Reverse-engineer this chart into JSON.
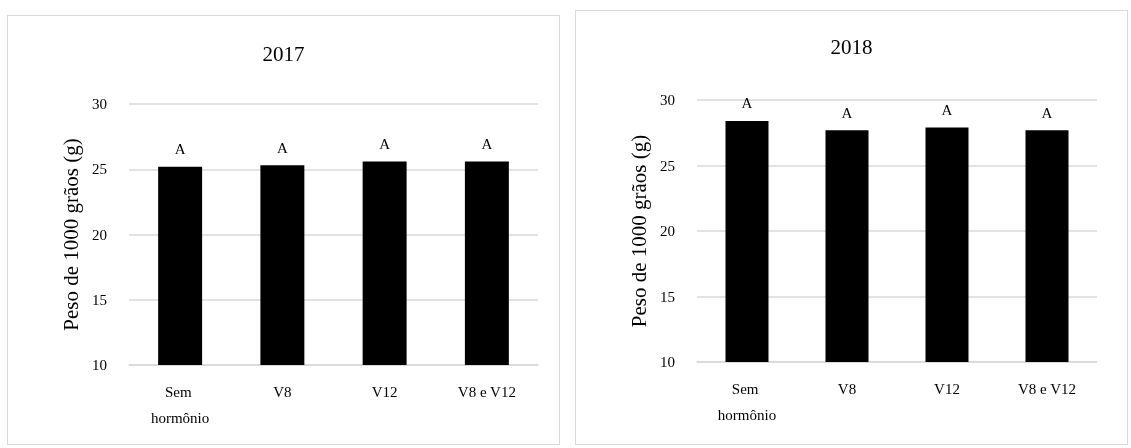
{
  "chart_data": [
    {
      "type": "bar",
      "title": "2017",
      "ylabel": "Peso de 1000 grãos (g)",
      "categories": [
        "Sem hormônio",
        "V8",
        "V12",
        "V8 e V12"
      ],
      "values": [
        25.2,
        25.3,
        25.6,
        25.6
      ],
      "value_labels": [
        "A",
        "A",
        "A",
        "A"
      ],
      "color": "#000000",
      "ylim": [
        10,
        30
      ],
      "yticks": [
        10,
        15,
        20,
        25,
        30
      ],
      "grid": "y"
    },
    {
      "type": "bar",
      "title": "2018",
      "ylabel": "Peso de 1000 grãos (g)",
      "categories": [
        "Sem hormônio",
        "V8",
        "V12",
        "V8 e V12"
      ],
      "values": [
        28.4,
        27.7,
        27.9,
        27.7
      ],
      "value_labels": [
        "A",
        "A",
        "A",
        "A"
      ],
      "color": "#000000",
      "ylim": [
        10,
        30
      ],
      "yticks": [
        10,
        15,
        20,
        25,
        30
      ],
      "grid": "y"
    }
  ]
}
